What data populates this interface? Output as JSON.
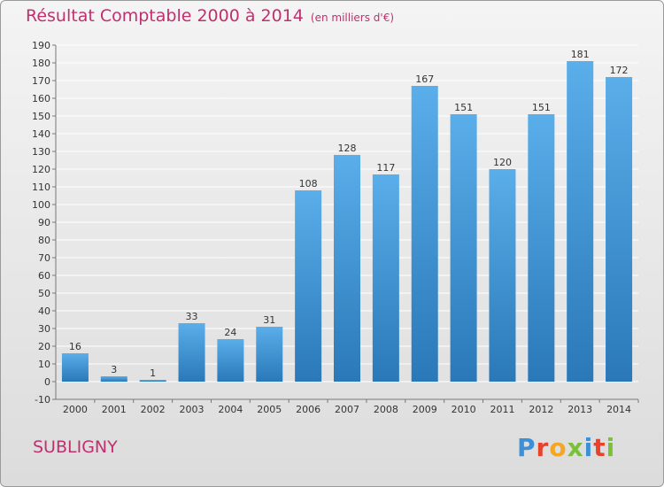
{
  "header": {
    "title": "Résultat Comptable 2000 à 2014",
    "unit": "(en milliers d'€)"
  },
  "footer": {
    "city": "SUBLIGNY",
    "logo": "Proxiti"
  },
  "colors": {
    "title": "#c0306e",
    "bar_top": "#5aaeea",
    "bar_bottom": "#2a78b8",
    "grid": "#ffffff"
  },
  "chart_data": {
    "type": "bar",
    "title": "Résultat Comptable 2000 à 2014",
    "categories": [
      "2000",
      "2001",
      "2002",
      "2003",
      "2004",
      "2005",
      "2006",
      "2007",
      "2008",
      "2009",
      "2010",
      "2011",
      "2012",
      "2013",
      "2014"
    ],
    "values": [
      16,
      3,
      1,
      33,
      24,
      31,
      108,
      128,
      117,
      167,
      151,
      120,
      151,
      181,
      172
    ],
    "ylim": [
      -10,
      190
    ],
    "yticks": [
      -10,
      0,
      10,
      20,
      30,
      40,
      50,
      60,
      70,
      80,
      90,
      100,
      110,
      120,
      130,
      140,
      150,
      160,
      170,
      180,
      190
    ],
    "grid": true,
    "xlabel": "",
    "ylabel": ""
  }
}
